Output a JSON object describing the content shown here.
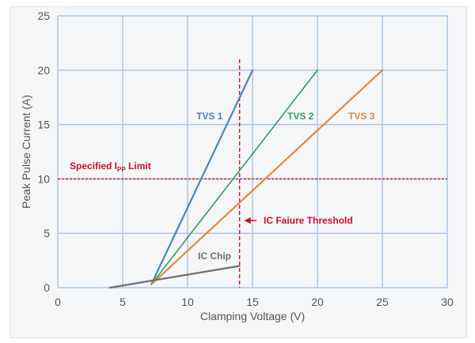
{
  "chart_data": {
    "type": "line",
    "xlabel": "Clamping Voltage (V)",
    "ylabel": "Peak Pulse Current (A)",
    "xlim": [
      0,
      30
    ],
    "ylim": [
      0,
      25
    ],
    "x_ticks": [
      "0",
      "5",
      "10",
      "15",
      "20",
      "25",
      "30"
    ],
    "y_ticks": [
      "0",
      "5",
      "10",
      "15",
      "20",
      "25"
    ],
    "grid": true,
    "legend": "none",
    "series": [
      {
        "name": "TVS 1",
        "color": "#4a86b8",
        "points": [
          [
            7.2,
            0.3
          ],
          [
            15,
            20
          ]
        ]
      },
      {
        "name": "TVS 2",
        "color": "#2e9e66",
        "points": [
          [
            7.2,
            0.3
          ],
          [
            20,
            20
          ]
        ]
      },
      {
        "name": "TVS 3",
        "color": "#e8873a",
        "points": [
          [
            7.2,
            0.3
          ],
          [
            25,
            20
          ]
        ]
      },
      {
        "name": "IC Chip",
        "color": "#6e6e6e",
        "points": [
          [
            4,
            0
          ],
          [
            14,
            2
          ]
        ]
      }
    ],
    "annotations": {
      "ipp_limit": {
        "label": "Specified I",
        "subscript": "PP",
        "suffix": " Limit",
        "value": 10,
        "color": "#c8102e"
      },
      "ic_threshold": {
        "label": "IC Faiure Threshold",
        "value": 14,
        "y_top": 21,
        "color": "#c8102e"
      }
    }
  }
}
